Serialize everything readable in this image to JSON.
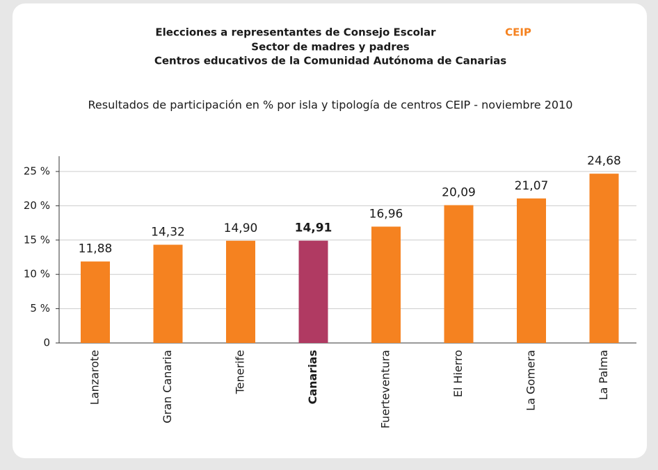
{
  "chart_data": {
    "type": "bar",
    "title": [
      "Elecciones a representantes de Consejo Escolar",
      "Sector de madres y padres",
      "Centros educativos de la Comunidad Autónoma de Canarias"
    ],
    "title_badge": "CEIP",
    "subtitle": "Resultados de participación en % por isla y tipología de centros CEIP - noviembre 2010",
    "categories": [
      "Lanzarote",
      "Gran Canaria",
      "Tenerife",
      "Canarias",
      "Fuerteventura",
      "El Hierro",
      "La Gomera",
      "La Palma"
    ],
    "values": [
      11.88,
      14.32,
      14.9,
      14.91,
      16.96,
      20.09,
      21.07,
      24.68
    ],
    "value_labels": [
      "11,88",
      "14,32",
      "14,90",
      "14,91",
      "16,96",
      "20,09",
      "21,07",
      "24,68"
    ],
    "color": "#f58220",
    "colors": [
      "#f58220",
      "#f58220",
      "#f58220",
      "#b03a62",
      "#f58220",
      "#f58220",
      "#f58220",
      "#f58220"
    ],
    "ylim": [
      0,
      25
    ],
    "yticks": [
      0,
      {
        "value": 5,
        "label": "5 %"
      },
      {
        "value": 10,
        "label": "10 %"
      },
      {
        "value": 15,
        "label": "15 %"
      },
      {
        "value": 20,
        "label": "20 %"
      },
      {
        "value": 25,
        "label": "25 %"
      }
    ],
    "grid": true
  }
}
